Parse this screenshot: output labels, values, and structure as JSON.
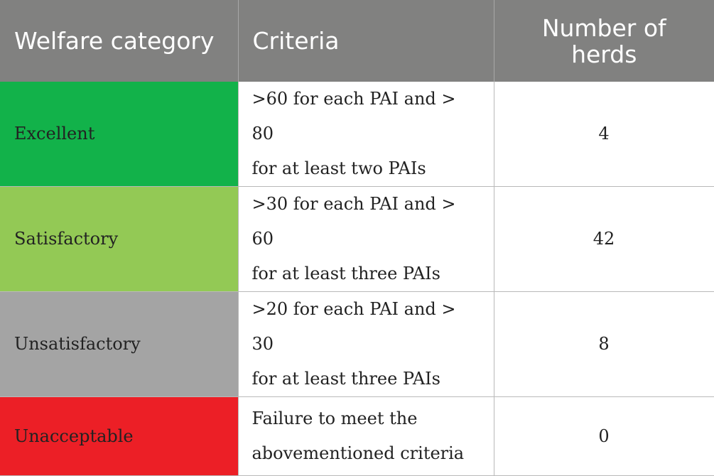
{
  "header": {
    "category": "Welfare category",
    "criteria": "Criteria",
    "count": "Number of herds"
  },
  "rows": [
    {
      "category": "Excellent",
      "color": "#12b24a",
      "criteria_line1": ">60 for each PAI and > 80",
      "criteria_line2": "for at least two PAIs",
      "count": "4"
    },
    {
      "category": "Satisfactory",
      "color": "#93c955",
      "criteria_line1": ">30 for each PAI and > 60",
      "criteria_line2": "for at least three PAIs",
      "count": "42"
    },
    {
      "category": "Unsatisfactory",
      "color": "#a4a4a4",
      "criteria_line1": ">20 for each PAI and > 30",
      "criteria_line2": "for at least three PAIs",
      "count": "8"
    },
    {
      "category": "Unacceptable",
      "color": "#ec1f26",
      "criteria_line1": "Failure to meet the",
      "criteria_line2": "abovementioned criteria",
      "count": "0"
    }
  ],
  "colors": {
    "header_bg": "#818180",
    "header_text": "#ffffff"
  }
}
